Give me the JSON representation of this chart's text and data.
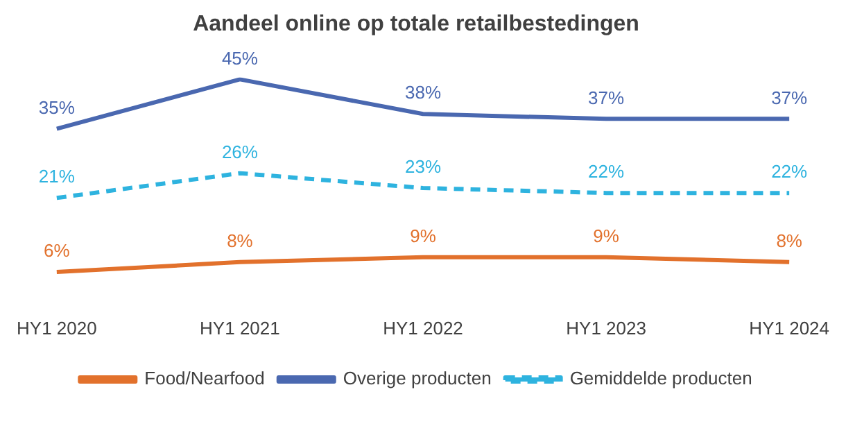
{
  "chart_data": {
    "type": "line",
    "title": "Aandeel online op totale retailbestedingen",
    "categories": [
      "HY1 2020",
      "HY1 2021",
      "HY1 2022",
      "HY1 2023",
      "HY1 2024"
    ],
    "series": [
      {
        "name": "Food/Nearfood",
        "color": "#e2712c",
        "values": [
          6,
          8,
          9,
          9,
          8
        ],
        "value_labels": [
          "6%",
          "8%",
          "9%",
          "9%",
          "8%"
        ]
      },
      {
        "name": "Overige producten",
        "color": "#4a68b0",
        "values": [
          35,
          45,
          38,
          37,
          37
        ],
        "value_labels": [
          "35%",
          "45%",
          "38%",
          "37%",
          "37%"
        ]
      },
      {
        "name": "Gemiddelde producten",
        "color": "#2eb3df",
        "values": [
          21,
          26,
          23,
          22,
          22
        ],
        "value_labels": [
          "21%",
          "26%",
          "23%",
          "22%",
          "22%"
        ],
        "line_style": "dashed"
      }
    ],
    "legend": "bottom",
    "marker": "none"
  }
}
